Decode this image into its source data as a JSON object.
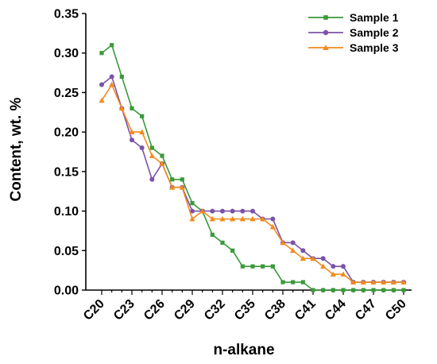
{
  "chart_data": {
    "type": "line",
    "title": "",
    "xlabel": "n-alkane",
    "ylabel": "Content, wt. %",
    "ylim": [
      0,
      0.35
    ],
    "yticks": [
      "0.00",
      "0.05",
      "0.10",
      "0.15",
      "0.20",
      "0.25",
      "0.30",
      "0.35"
    ],
    "categories": [
      "C20",
      "C21",
      "C22",
      "C23",
      "C24",
      "C25",
      "C26",
      "C27",
      "C28",
      "C29",
      "C30",
      "C31",
      "C32",
      "C33",
      "C34",
      "C35",
      "C36",
      "C37",
      "C38",
      "C39",
      "C40",
      "C41",
      "C42",
      "C43",
      "C44",
      "C45",
      "C46",
      "C47",
      "C48",
      "C49",
      "C50"
    ],
    "xtick_labels": [
      "C20",
      "C23",
      "C26",
      "C29",
      "C32",
      "C35",
      "C38",
      "C41",
      "C44",
      "C47",
      "C50"
    ],
    "grid": false,
    "legend_position": "top-right",
    "series": [
      {
        "name": "Sample 1",
        "color": "#3a9a3a",
        "marker": "square",
        "values": [
          0.3,
          0.31,
          0.27,
          0.23,
          0.22,
          0.18,
          0.17,
          0.14,
          0.14,
          0.11,
          0.1,
          0.07,
          0.06,
          0.05,
          0.03,
          0.03,
          0.03,
          0.03,
          0.01,
          0.01,
          0.01,
          0.0,
          0.0,
          0.0,
          0.0,
          0.0,
          0.0,
          0.0,
          0.0,
          0.0,
          0.0
        ]
      },
      {
        "name": "Sample 2",
        "color": "#7b52a8",
        "marker": "circle",
        "values": [
          0.26,
          0.27,
          0.23,
          0.19,
          0.18,
          0.14,
          0.16,
          0.13,
          0.13,
          0.1,
          0.1,
          0.1,
          0.1,
          0.1,
          0.1,
          0.1,
          0.09,
          0.09,
          0.06,
          0.06,
          0.05,
          0.04,
          0.04,
          0.03,
          0.03,
          0.01,
          0.01,
          0.01,
          0.01,
          0.01,
          0.01
        ]
      },
      {
        "name": "Sample 3",
        "color": "#f28a1c",
        "marker": "triangle",
        "values": [
          0.24,
          0.26,
          0.23,
          0.2,
          0.2,
          0.17,
          0.16,
          0.13,
          0.13,
          0.09,
          0.1,
          0.09,
          0.09,
          0.09,
          0.09,
          0.09,
          0.09,
          0.08,
          0.06,
          0.05,
          0.04,
          0.04,
          0.03,
          0.02,
          0.02,
          0.01,
          0.01,
          0.01,
          0.01,
          0.01,
          0.01
        ]
      }
    ]
  }
}
